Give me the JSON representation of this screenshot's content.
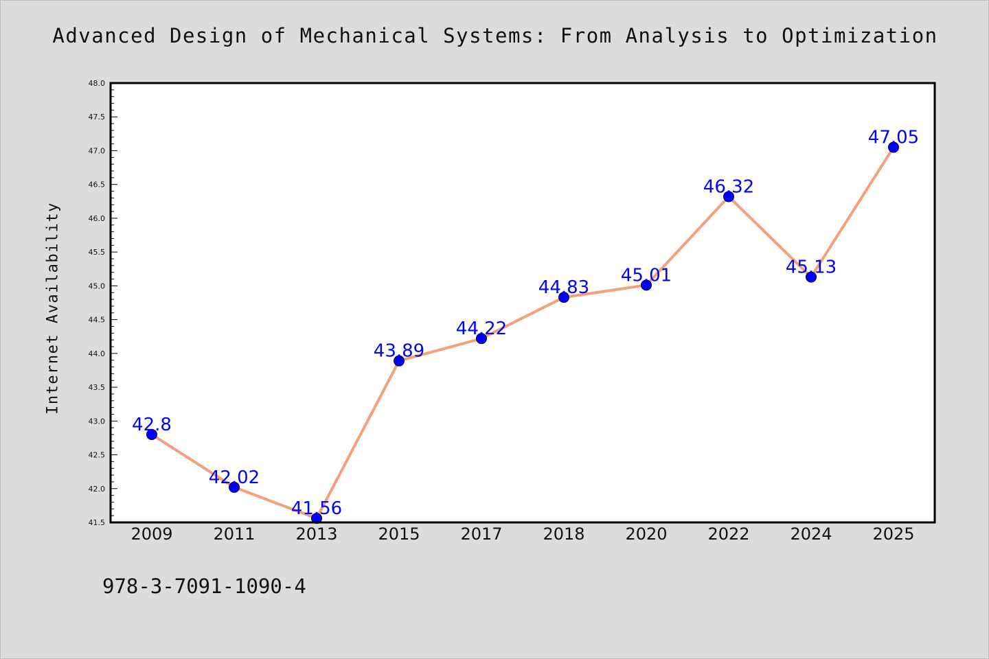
{
  "chart_data": {
    "type": "line",
    "title": "Advanced Design of Mechanical Systems: From Analysis to Optimization",
    "xlabel": "",
    "ylabel": "Internet Availability",
    "categories": [
      "2009",
      "2011",
      "2013",
      "2015",
      "2017",
      "2018",
      "2020",
      "2022",
      "2024",
      "2025"
    ],
    "series": [
      {
        "values": [
          42.8,
          42.02,
          41.56,
          43.89,
          44.22,
          44.83,
          45.01,
          46.32,
          45.13,
          47.05
        ],
        "data_labels": [
          "42.8",
          "42.02",
          "41.56",
          "43.89",
          "44.22",
          "44.83",
          "45.01",
          "46.32",
          "45.13",
          "47.05"
        ]
      }
    ],
    "ylim": [
      41.5,
      48.0
    ],
    "yticks": [
      "41.5",
      "42.0",
      "42.5",
      "43.0",
      "43.5",
      "44.0",
      "44.5",
      "45.0",
      "45.5",
      "46.0",
      "46.5",
      "47.0",
      "47.5",
      "48.0"
    ],
    "grid": false,
    "legend": "none",
    "colors": {
      "line": "#f4a07a",
      "marker": "#0000ff",
      "data_label": "#0000ff",
      "background": "#dcdcdc",
      "plot_background": "#ffffff"
    }
  },
  "footnote": "978-3-7091-1090-4"
}
